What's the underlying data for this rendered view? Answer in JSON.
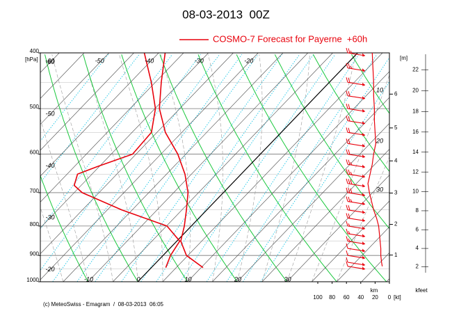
{
  "chart_data": {
    "type": "emagram",
    "title": "08-03-2013  00Z",
    "legend": {
      "name": "COSMO-7 Forecast for Payerne  +60h",
      "color": "#e8000b"
    },
    "footer": "(c) MeteoSwiss - Emagram  /  08-03-2013  06:05",
    "y_label": "[hPa]",
    "log_y": true,
    "ylim": [
      400,
      1000
    ],
    "yticks": [
      400,
      500,
      600,
      700,
      800,
      900,
      1000
    ],
    "xlim": [
      -19.6,
      50.6
    ],
    "temperature_ticks_top": [
      -60,
      -50,
      -40,
      -30,
      -20
    ],
    "temperature_ticks_left": [
      -60,
      -50,
      -40,
      -30,
      -20
    ],
    "temperature_ticks_bottom": [
      -10,
      0,
      10,
      20,
      30
    ],
    "pressure": [
      400,
      450,
      500,
      550,
      600,
      650,
      700,
      750,
      800,
      850,
      900,
      945
    ],
    "temperature": [
      -38.7,
      -33.8,
      -29.1,
      -23.3,
      -16.6,
      -11.3,
      -7.1,
      -4.1,
      -1.4,
      0.8,
      4.7,
      10.4
    ],
    "dewpoint_pressure": [
      400,
      450,
      500,
      550,
      600,
      630,
      650,
      680,
      700,
      750,
      800,
      850,
      900,
      945
    ],
    "dewpoint": [
      -42.9,
      -35.8,
      -29.9,
      -26.1,
      -25.7,
      -30.3,
      -32.9,
      -31.4,
      -28.4,
      -17.1,
      -4.9,
      0.6,
      1.5,
      2.9
    ],
    "wind": {
      "pressure": [
        400,
        425,
        450,
        475,
        500,
        525,
        550,
        575,
        600,
        625,
        650,
        675,
        700,
        725,
        750,
        775,
        800,
        825,
        850,
        875,
        900,
        925,
        940
      ],
      "speed": [
        24,
        23,
        22,
        22,
        21,
        21,
        20,
        19,
        22,
        24,
        27,
        30,
        28,
        25,
        22,
        18,
        15,
        14,
        13,
        12,
        12,
        11,
        10
      ]
    },
    "speed_lim": [
      0,
      100
    ],
    "speed_ticks": [
      100,
      80,
      60,
      40,
      20,
      0
    ],
    "speed_label": "[kt]",
    "profile_labels": [
      10,
      20,
      30
    ],
    "height_label": "[m]",
    "height_unit": "km",
    "height_ticks": [
      1,
      2,
      3,
      4,
      5,
      6
    ],
    "kfeet_label": "kfeet",
    "kfeet_ticks": [
      2,
      4,
      6,
      8,
      10,
      12,
      14,
      16,
      18,
      20,
      22
    ],
    "grid": true
  }
}
